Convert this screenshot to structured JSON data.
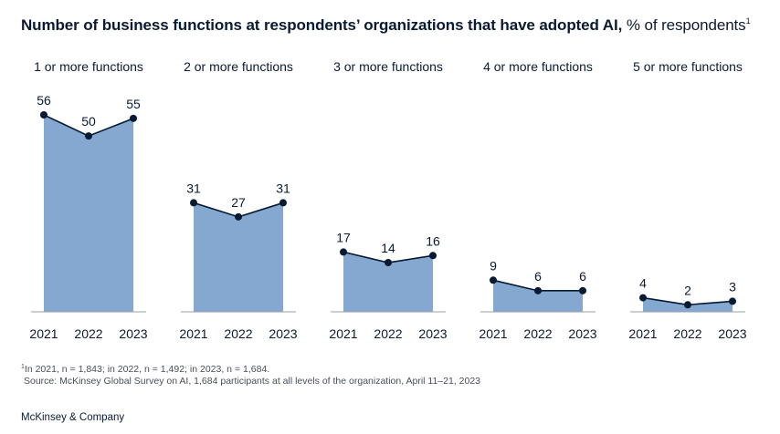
{
  "title": {
    "main": "Number of business functions at respondents’ organizations that have adopted AI,",
    "unit": "% of respondents",
    "footnote_marker": "1"
  },
  "chart_data": {
    "type": "area",
    "title": "Number of business functions at respondents’ organizations that have adopted AI, % of respondents",
    "categories": [
      "2021",
      "2022",
      "2023"
    ],
    "ylim": [
      0,
      56
    ],
    "grid": false,
    "series": [
      {
        "name": "1 or more functions",
        "values": [
          56,
          50,
          55
        ]
      },
      {
        "name": "2 or more functions",
        "values": [
          31,
          27,
          31
        ]
      },
      {
        "name": "3 or more functions",
        "values": [
          17,
          14,
          16
        ]
      },
      {
        "name": "4 or more functions",
        "values": [
          9,
          6,
          6
        ]
      },
      {
        "name": "5 or more functions",
        "values": [
          4,
          2,
          3
        ]
      }
    ]
  },
  "colors": {
    "area": "#84a8d0",
    "line": "#061a33",
    "text": "#0b1a33"
  },
  "footnote": {
    "marker": "1",
    "sample": "In 2021, n = 1,843; in 2022, n = 1,492; in 2023, n = 1,684.",
    "source": "Source: McKinsey Global Survey on AI, 1,684 participants at all levels of the organization, April 11–21, 2023"
  },
  "brand": "McKinsey & Company"
}
